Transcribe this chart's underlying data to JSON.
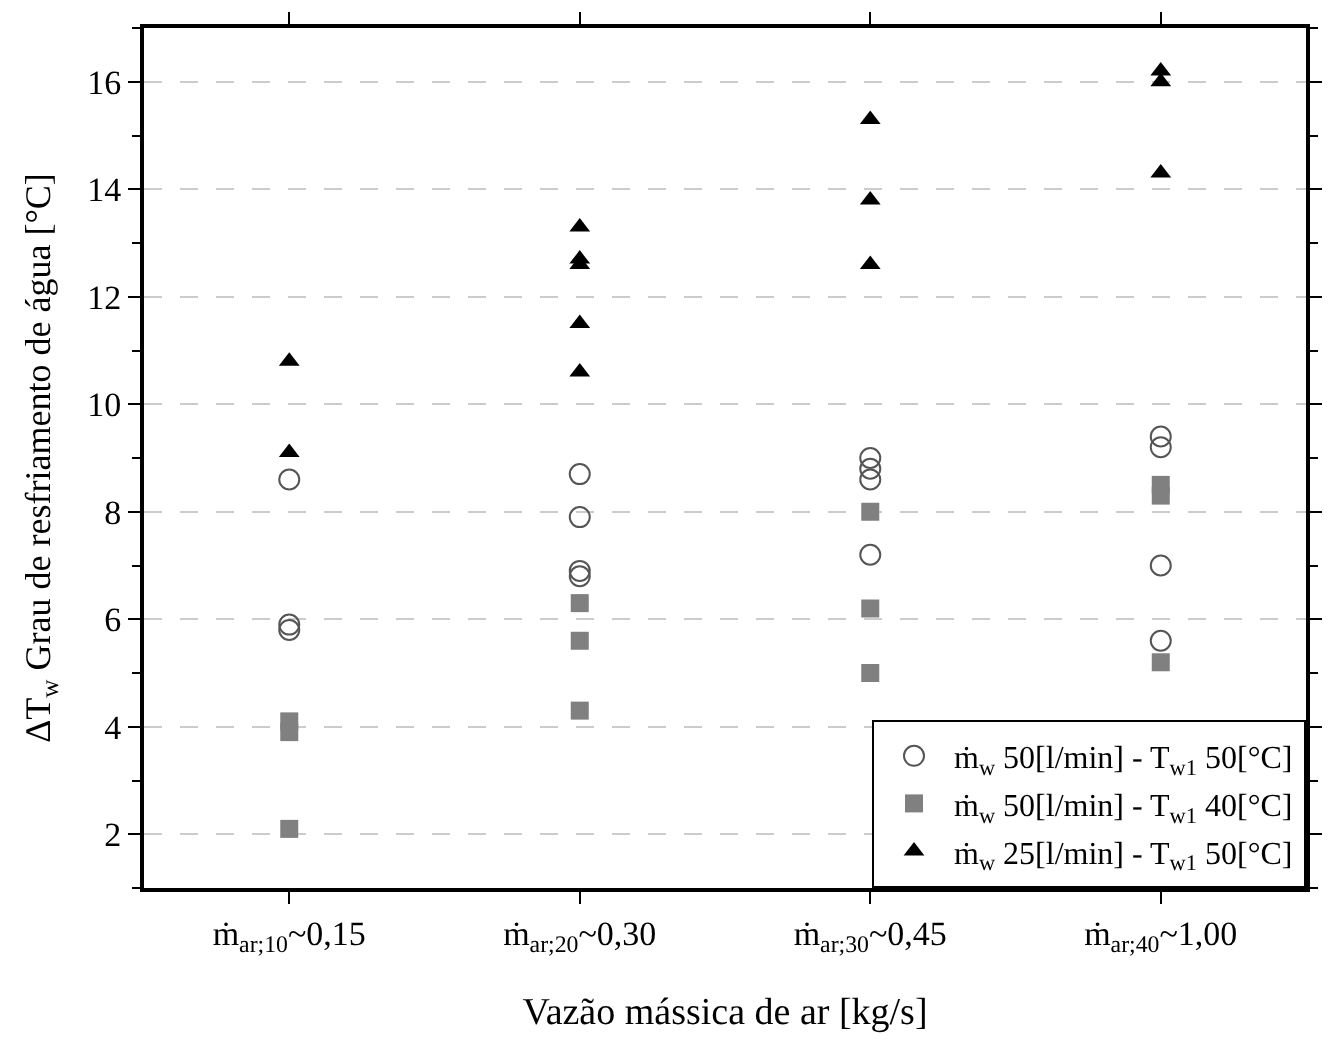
{
  "chart_data": {
    "type": "scatter",
    "xlabel": "Vazão mássica de ar [kg/s]",
    "ylabel": "ΔT$_{w}$ Grau de resfriamento de água [°C]",
    "categories": [
      "ṁ$_{ar;10}$~0,15",
      "ṁ$_{ar;20}$~0,30",
      "ṁ$_{ar;30}$~0,45",
      "ṁ$_{ar;40}$~1,00"
    ],
    "ylim": [
      1,
      17
    ],
    "yticks": [
      2,
      4,
      6,
      8,
      10,
      12,
      14,
      16
    ],
    "grid": "y",
    "legend": "bottom right",
    "series": [
      {
        "name": "ṁ$_{w}$ 50[l/min] - T$_{w1}$ 50[°C]",
        "color": "#555555",
        "marker": "circle-open",
        "x": [
          "ṁ$_{ar;10}$~0,15",
          "ṁ$_{ar;10}$~0,15",
          "ṁ$_{ar;10}$~0,15",
          "ṁ$_{ar;20}$~0,30",
          "ṁ$_{ar;20}$~0,30",
          "ṁ$_{ar;20}$~0,30",
          "ṁ$_{ar;20}$~0,30",
          "ṁ$_{ar;30}$~0,45",
          "ṁ$_{ar;30}$~0,45",
          "ṁ$_{ar;30}$~0,45",
          "ṁ$_{ar;30}$~0,45",
          "ṁ$_{ar;40}$~1,00",
          "ṁ$_{ar;40}$~1,00",
          "ṁ$_{ar;40}$~1,00",
          "ṁ$_{ar;40}$~1,00"
        ],
        "values": [
          8.6,
          5.9,
          5.8,
          8.7,
          7.9,
          6.9,
          6.8,
          9.0,
          8.8,
          8.6,
          7.2,
          9.4,
          9.2,
          7.0,
          5.6
        ]
      },
      {
        "name": "ṁ$_{w}$ 50[l/min] - T$_{w1}$ 40[°C]",
        "color": "#808080",
        "marker": "square",
        "x": [
          "ṁ$_{ar;10}$~0,15",
          "ṁ$_{ar;10}$~0,15",
          "ṁ$_{ar;10}$~0,15",
          "ṁ$_{ar;20}$~0,30",
          "ṁ$_{ar;20}$~0,30",
          "ṁ$_{ar;20}$~0,30",
          "ṁ$_{ar;30}$~0,45",
          "ṁ$_{ar;30}$~0,45",
          "ṁ$_{ar;30}$~0,45",
          "ṁ$_{ar;40}$~1,00",
          "ṁ$_{ar;40}$~1,00",
          "ṁ$_{ar;40}$~1,00"
        ],
        "values": [
          4.1,
          3.9,
          2.1,
          6.3,
          5.6,
          4.3,
          8.0,
          6.2,
          5.0,
          8.5,
          8.3,
          5.2
        ]
      },
      {
        "name": "ṁ$_{w}$ 25[l/min] - T$_{w1}$ 50[°C]",
        "color": "#000000",
        "marker": "triangle-up",
        "x": [
          "ṁ$_{ar;10}$~0,15",
          "ṁ$_{ar;10}$~0,15",
          "ṁ$_{ar;20}$~0,30",
          "ṁ$_{ar;20}$~0,30",
          "ṁ$_{ar;20}$~0,30",
          "ṁ$_{ar;20}$~0,30",
          "ṁ$_{ar;20}$~0,30",
          "ṁ$_{ar;30}$~0,45",
          "ṁ$_{ar;30}$~0,45",
          "ṁ$_{ar;30}$~0,45",
          "ṁ$_{ar;40}$~1,00",
          "ṁ$_{ar;40}$~1,00",
          "ṁ$_{ar;40}$~1,00"
        ],
        "values": [
          10.8,
          9.1,
          13.3,
          12.7,
          12.6,
          11.5,
          10.6,
          15.3,
          13.8,
          12.6,
          16.2,
          16.0,
          14.3
        ]
      }
    ]
  }
}
